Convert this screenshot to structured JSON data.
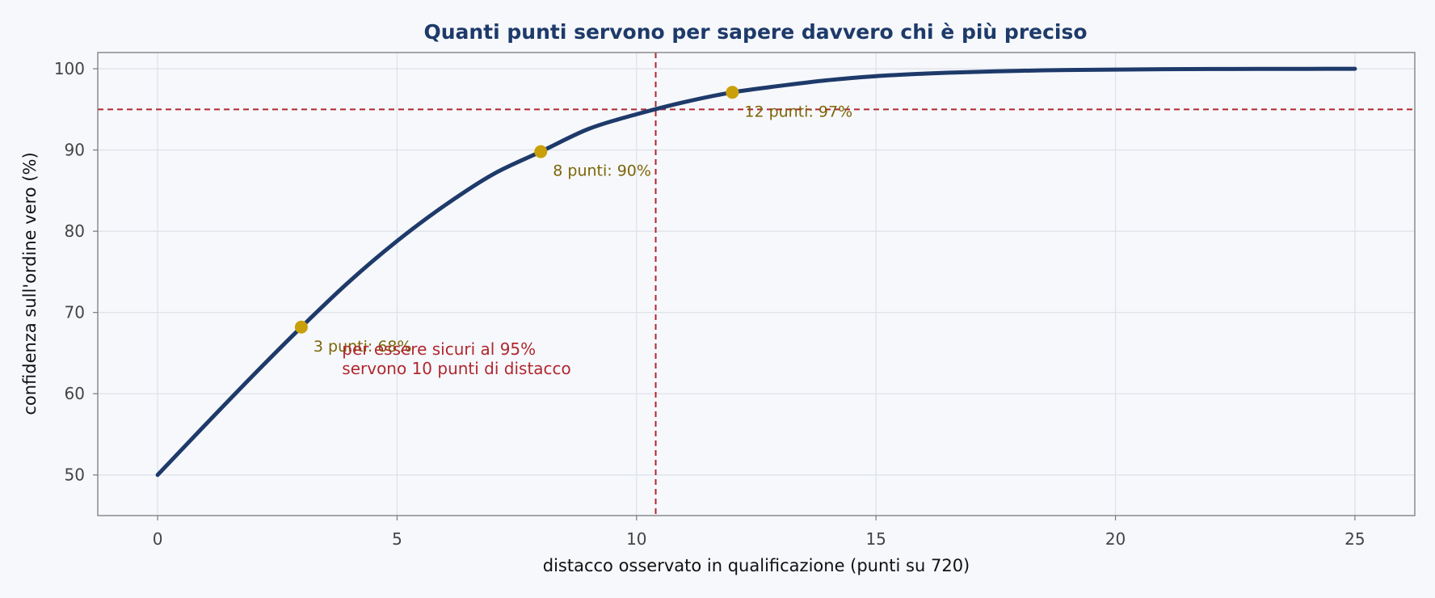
{
  "chart_data": {
    "type": "line",
    "title": "Quanti punti servono per sapere davvero chi è più preciso",
    "xlabel": "distacco osservato in qualificazione (punti su 720)",
    "ylabel": "confidenza sull'ordine vero (%)",
    "xlim": [
      -1.25,
      26.25
    ],
    "ylim": [
      45,
      102
    ],
    "xticks": [
      0,
      5,
      10,
      15,
      20,
      25
    ],
    "yticks": [
      50,
      60,
      70,
      80,
      90,
      100
    ],
    "grid": true,
    "series": [
      {
        "color": "#1e3a6a",
        "x": [
          0,
          1,
          2,
          3,
          4,
          5,
          6,
          7,
          8,
          9,
          10,
          11,
          12,
          13,
          14,
          15,
          16,
          17,
          18,
          19,
          20,
          21,
          22,
          23,
          24,
          25
        ],
        "y": [
          50,
          56.2,
          62.3,
          68.2,
          73.8,
          78.8,
          83.2,
          87.0,
          89.8,
          92.6,
          94.4,
          95.9,
          97.1,
          97.9,
          98.6,
          99.1,
          99.4,
          99.6,
          99.75,
          99.85,
          99.9,
          99.95,
          99.97,
          99.98,
          99.99,
          100
        ]
      }
    ],
    "highlight_points": [
      {
        "x": 3,
        "y": 68.2,
        "label": "3 punti: 68%"
      },
      {
        "x": 8,
        "y": 89.8,
        "label": "8 punti: 90%"
      },
      {
        "x": 12,
        "y": 97.1,
        "label": "12 punti: 97%"
      }
    ],
    "highlight_color": "#c9a00a",
    "highlight_text_color": "#7d6608",
    "threshold": {
      "y": 95,
      "x": 10.4,
      "color": "#b0282e",
      "note": [
        "per essere sicuri al 95%",
        "servono 10 punti di distacco"
      ],
      "note_x": 3.85,
      "note_y": 64.8
    }
  }
}
